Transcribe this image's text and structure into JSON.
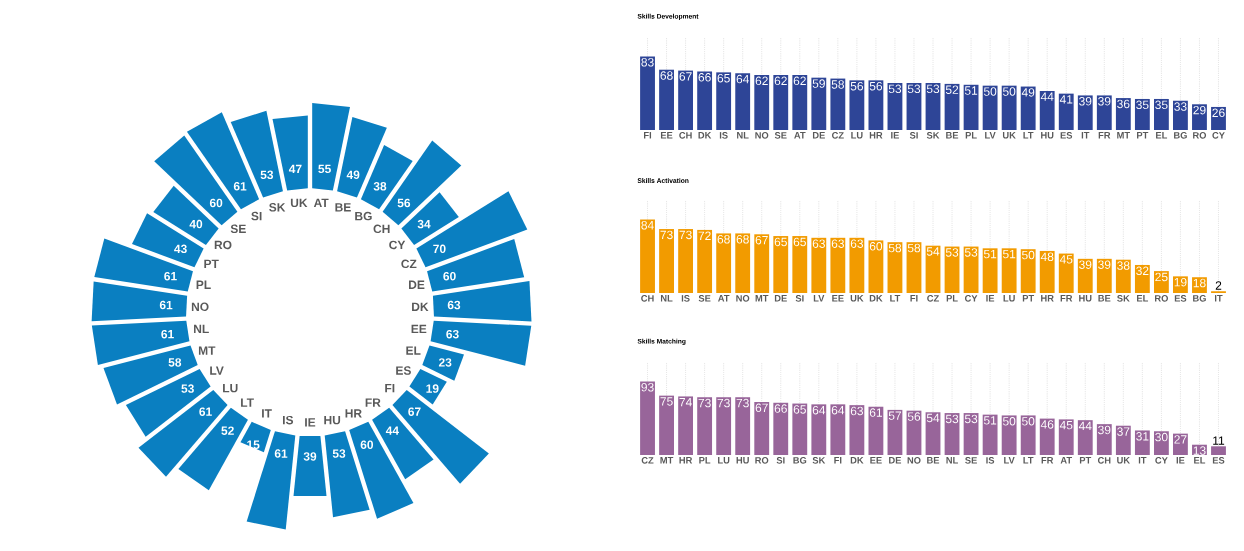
{
  "chart_data": [
    {
      "type": "other",
      "categories": [
        "AT",
        "BE",
        "BG",
        "CH",
        "CY",
        "CZ",
        "DE",
        "DK",
        "EE",
        "EL",
        "ES",
        "FI",
        "FR",
        "HR",
        "HU",
        "IE",
        "IS",
        "IT",
        "LT",
        "LU",
        "LV",
        "MT",
        "NL",
        "NO",
        "PL",
        "PT",
        "RO",
        "SE",
        "SI",
        "SK",
        "UK"
      ],
      "values": [
        55,
        49,
        38,
        56,
        34,
        70,
        60,
        63,
        63,
        23,
        19,
        67,
        44,
        60,
        53,
        39,
        61,
        15,
        52,
        61,
        53,
        58,
        61,
        61,
        61,
        43,
        40,
        60,
        61,
        53,
        47
      ],
      "color": "#0a7fc1",
      "data_labels": true
    },
    {
      "type": "bar",
      "title": "Skills Development",
      "categories": [
        "FI",
        "EE",
        "CH",
        "DK",
        "IS",
        "NL",
        "NO",
        "SE",
        "AT",
        "DE",
        "CZ",
        "LU",
        "HR",
        "IE",
        "SI",
        "SK",
        "BE",
        "PL",
        "LV",
        "UK",
        "LT",
        "HU",
        "ES",
        "IT",
        "FR",
        "MT",
        "PT",
        "EL",
        "BG",
        "RO",
        "CY"
      ],
      "values": [
        83,
        68,
        67,
        66,
        65,
        64,
        62,
        62,
        62,
        59,
        58,
        56,
        56,
        53,
        53,
        53,
        52,
        51,
        50,
        50,
        49,
        44,
        41,
        39,
        39,
        36,
        35,
        35,
        33,
        29,
        26
      ],
      "color": "#2e4597",
      "data_labels": true,
      "grid": "x"
    },
    {
      "type": "bar",
      "title": "Skills Activation",
      "categories": [
        "CH",
        "NL",
        "IS",
        "SE",
        "AT",
        "NO",
        "MT",
        "DE",
        "SI",
        "LV",
        "EE",
        "UK",
        "DK",
        "LT",
        "FI",
        "CZ",
        "PL",
        "CY",
        "IE",
        "LU",
        "PT",
        "HR",
        "FR",
        "HU",
        "BE",
        "SK",
        "EL",
        "RO",
        "ES",
        "BG",
        "IT"
      ],
      "values": [
        84,
        73,
        73,
        72,
        68,
        68,
        67,
        65,
        65,
        63,
        63,
        63,
        60,
        58,
        58,
        54,
        53,
        53,
        51,
        51,
        50,
        48,
        45,
        39,
        39,
        38,
        32,
        25,
        19,
        18,
        2
      ],
      "color": "#f29b00",
      "data_labels": true,
      "grid": "x"
    },
    {
      "type": "bar",
      "title": "Skills Matching",
      "categories": [
        "CZ",
        "MT",
        "HR",
        "PL",
        "LU",
        "HU",
        "RO",
        "SI",
        "BG",
        "SK",
        "FI",
        "DK",
        "EE",
        "DE",
        "NO",
        "BE",
        "NL",
        "SE",
        "IS",
        "LV",
        "LT",
        "FR",
        "AT",
        "PT",
        "CH",
        "UK",
        "IT",
        "CY",
        "IE",
        "EL",
        "ES"
      ],
      "values": [
        93,
        75,
        74,
        73,
        73,
        73,
        67,
        66,
        65,
        64,
        64,
        63,
        61,
        57,
        56,
        54,
        53,
        53,
        51,
        50,
        50,
        46,
        45,
        44,
        39,
        37,
        31,
        30,
        27,
        13,
        11
      ],
      "color": "#98659a",
      "data_labels": true,
      "grid": "x"
    }
  ]
}
